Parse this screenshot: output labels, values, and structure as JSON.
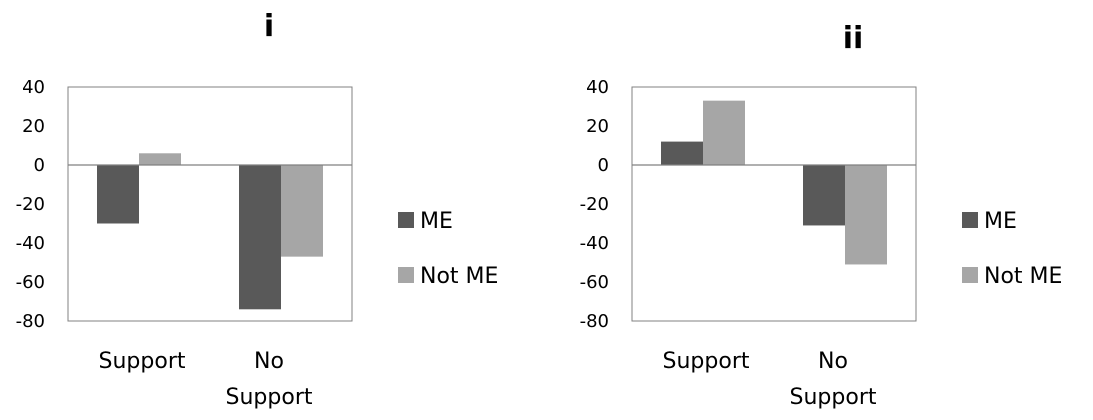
{
  "chart_data": [
    {
      "type": "bar",
      "title": "i",
      "categories": [
        "Support",
        "No Support"
      ],
      "series": [
        {
          "name": "ME",
          "values": [
            -30,
            -74
          ]
        },
        {
          "name": "Not ME",
          "values": [
            6,
            -47
          ]
        }
      ],
      "ylim": [
        -80,
        40
      ],
      "yticks": [
        "40",
        "20",
        "0",
        "-20",
        "-40",
        "-60",
        "-80"
      ],
      "colors": {
        "ME": "#595959",
        "Not ME": "#a6a6a6"
      },
      "grid": false,
      "legend": "right"
    },
    {
      "type": "bar",
      "title": "ii",
      "categories": [
        "Support",
        "No Support"
      ],
      "series": [
        {
          "name": "ME",
          "values": [
            12,
            -31
          ]
        },
        {
          "name": "Not ME",
          "values": [
            33,
            -51
          ]
        }
      ],
      "ylim": [
        -80,
        40
      ],
      "yticks": [
        "40",
        "20",
        "0",
        "-20",
        "-40",
        "-60",
        "-80"
      ],
      "colors": {
        "ME": "#595959",
        "Not ME": "#a6a6a6"
      },
      "grid": false,
      "legend": "right"
    }
  ]
}
